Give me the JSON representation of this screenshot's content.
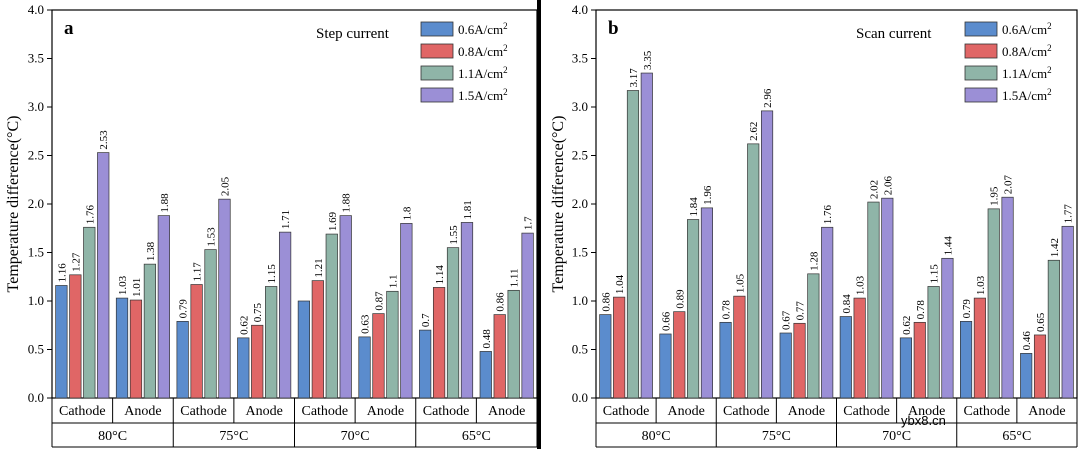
{
  "chart_data": [
    {
      "type": "bar",
      "panel_letter": "a",
      "mode_title": "Step current",
      "ylabel": "Temperature difference(°C)",
      "ylim": [
        0,
        4.0
      ],
      "yticks": [
        "0.0",
        "0.5",
        "1.0",
        "1.5",
        "2.0",
        "2.5",
        "3.0",
        "3.5",
        "4.0"
      ],
      "electrodes": [
        "Cathode",
        "Anode"
      ],
      "temperatures": [
        "80°C",
        "75°C",
        "70°C",
        "65°C"
      ],
      "categories": [
        "Cathode",
        "Anode",
        "Cathode",
        "Anode",
        "Cathode",
        "Anode",
        "Cathode",
        "Anode"
      ],
      "series": [
        {
          "name": "0.6A/cm²",
          "color": "#5b8ccd",
          "values": [
            1.16,
            1.03,
            0.79,
            0.62,
            1.0,
            0.63,
            0.7,
            0.48
          ],
          "labels": [
            "1.16",
            "1.03",
            "0.79",
            "0.62",
            "",
            "0.63",
            "0.7",
            "0.48"
          ]
        },
        {
          "name": "0.8A/cm²",
          "color": "#e06666",
          "values": [
            1.27,
            1.01,
            1.17,
            0.75,
            1.21,
            0.87,
            1.14,
            0.86
          ],
          "labels": [
            "1.27",
            "1.01",
            "1.17",
            "0.75",
            "1.21",
            "0.87",
            "1.14",
            "0.86"
          ]
        },
        {
          "name": "1.1A/cm²",
          "color": "#8fb5a8",
          "values": [
            1.76,
            1.38,
            1.53,
            1.15,
            1.69,
            1.1,
            1.55,
            1.11
          ],
          "labels": [
            "1.76",
            "1.38",
            "1.53",
            "1.15",
            "1.69",
            "1.1",
            "1.55",
            "1.11"
          ]
        },
        {
          "name": "1.5A/cm²",
          "color": "#9b8fd6",
          "values": [
            2.53,
            1.88,
            2.05,
            1.71,
            1.88,
            1.8,
            1.81,
            1.7
          ],
          "labels": [
            "2.53",
            "1.88",
            "2.05",
            "1.71",
            "1.88",
            "1.8",
            "1.81",
            "1.7"
          ]
        }
      ]
    },
    {
      "type": "bar",
      "panel_letter": "b",
      "mode_title": "Scan current",
      "ylabel": "Temperature difference(°C)",
      "ylim": [
        0,
        4.0
      ],
      "yticks": [
        "0.0",
        "0.5",
        "1.0",
        "1.5",
        "2.0",
        "2.5",
        "3.0",
        "3.5",
        "4.0"
      ],
      "electrodes": [
        "Cathode",
        "Anode"
      ],
      "temperatures": [
        "80°C",
        "75°C",
        "70°C",
        "65°C"
      ],
      "categories": [
        "Cathode",
        "Anode",
        "Cathode",
        "Anode",
        "Cathode",
        "Anode",
        "Cathode",
        "Anode"
      ],
      "series": [
        {
          "name": "0.6A/cm²",
          "color": "#5b8ccd",
          "values": [
            0.86,
            0.66,
            0.78,
            0.67,
            0.84,
            0.62,
            0.79,
            0.46
          ],
          "labels": [
            "0.86",
            "0.66",
            "0.78",
            "0.67",
            "0.84",
            "0.62",
            "0.79",
            "0.46"
          ]
        },
        {
          "name": "0.8A/cm²",
          "color": "#e06666",
          "values": [
            1.04,
            0.89,
            1.05,
            0.77,
            1.03,
            0.78,
            1.03,
            0.65
          ],
          "labels": [
            "1.04",
            "0.89",
            "1.05",
            "0.77",
            "1.03",
            "0.78",
            "1.03",
            "0.65"
          ]
        },
        {
          "name": "1.1A/cm²",
          "color": "#8fb5a8",
          "values": [
            3.17,
            1.84,
            2.62,
            1.28,
            2.02,
            1.15,
            1.95,
            1.42
          ],
          "labels": [
            "3.17",
            "1.84",
            "2.62",
            "1.28",
            "2.02",
            "1.15",
            "1.95",
            "1.42"
          ]
        },
        {
          "name": "1.5A/cm²",
          "color": "#9b8fd6",
          "values": [
            3.35,
            1.96,
            2.96,
            1.76,
            2.06,
            1.44,
            2.07,
            1.77
          ],
          "labels": [
            "3.35",
            "1.96",
            "2.96",
            "1.76",
            "2.06",
            "1.44",
            "2.07",
            "1.77"
          ]
        }
      ]
    }
  ],
  "watermark": "ybx8.cn"
}
